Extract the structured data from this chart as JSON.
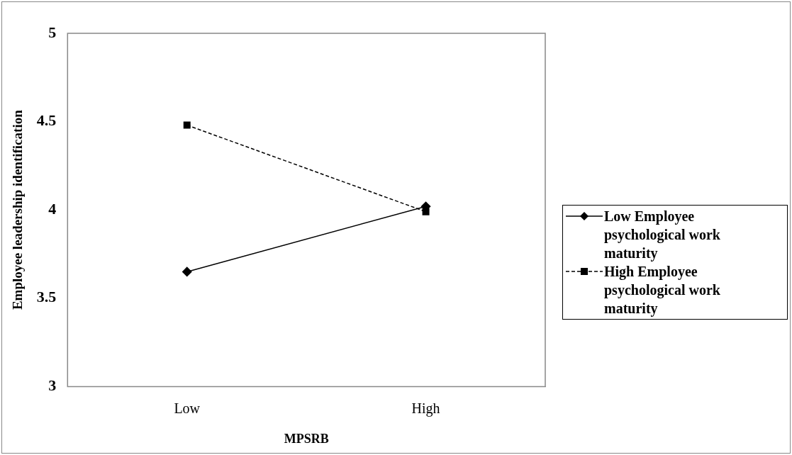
{
  "chart_data": {
    "type": "line",
    "xlabel": "MPSRB",
    "ylabel": "Employee leadership identification",
    "categories": [
      "Low",
      "High"
    ],
    "series": [
      {
        "name": "Low Employee psychological work maturity",
        "color": "#000000",
        "values": [
          3.65,
          4.02
        ],
        "marker": "diamond",
        "line_style": "solid"
      },
      {
        "name": "High Employee psychological work maturity",
        "color": "#000000",
        "values": [
          4.48,
          3.99
        ],
        "marker": "square",
        "line_style": "dashed"
      }
    ],
    "ylim": [
      3,
      5
    ],
    "yticks": [
      3,
      3.5,
      4,
      4.5,
      5
    ],
    "grid": false,
    "legend": "right"
  }
}
